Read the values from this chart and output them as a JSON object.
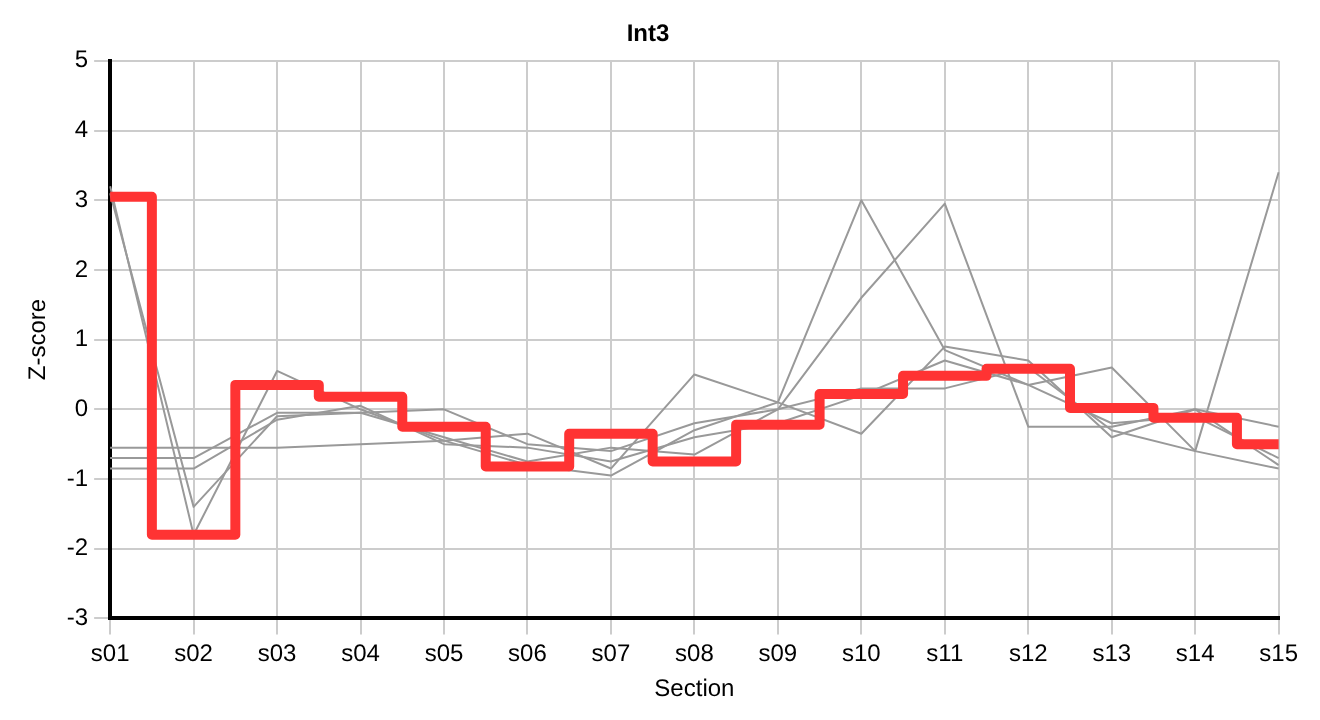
{
  "chart_data": {
    "type": "line",
    "title": "Int3",
    "xlabel": "Section",
    "ylabel": "Z-score",
    "categories": [
      "s01",
      "s02",
      "s03",
      "s04",
      "s05",
      "s06",
      "s07",
      "s08",
      "s09",
      "s10",
      "s11",
      "s12",
      "s13",
      "s14",
      "s15"
    ],
    "ylim": [
      -3,
      5
    ],
    "yticks": [
      -3,
      -2,
      -1,
      0,
      1,
      2,
      3,
      4,
      5
    ],
    "grid": true,
    "legend": false,
    "marker": "none",
    "series": [
      {
        "color": "#999999",
        "values": [
          3.2,
          -1.8,
          0.55,
          0.0,
          -0.45,
          -0.8,
          -0.95,
          -0.3,
          0.1,
          3.0,
          0.85,
          0.35,
          0.6,
          -0.6,
          3.4
        ]
      },
      {
        "color": "#999999",
        "values": [
          3.1,
          -1.4,
          -0.1,
          -0.05,
          -0.4,
          -0.75,
          -0.55,
          -0.65,
          0.0,
          1.6,
          2.95,
          -0.25,
          -0.25,
          0.0,
          -0.8
        ]
      },
      {
        "color": "#999999",
        "values": [
          -0.55,
          -0.55,
          -0.55,
          -0.5,
          -0.45,
          -0.35,
          -0.85,
          0.5,
          0.1,
          -0.35,
          0.9,
          0.7,
          -0.4,
          0.0,
          -0.25
        ]
      },
      {
        "color": "#999999",
        "values": [
          -0.7,
          -0.7,
          -0.05,
          -0.05,
          0.0,
          -0.5,
          -0.6,
          -0.2,
          0.0,
          0.3,
          0.3,
          0.6,
          -0.3,
          -0.6,
          -0.85
        ]
      },
      {
        "color": "#999999",
        "values": [
          -0.85,
          -0.85,
          -0.15,
          0.05,
          -0.5,
          -0.55,
          -0.75,
          -0.4,
          -0.2,
          0.2,
          0.7,
          0.35,
          -0.2,
          -0.1,
          -0.7
        ]
      },
      {
        "type": "step",
        "color": "#ff3333",
        "values": [
          3.05,
          -1.8,
          0.35,
          0.18,
          -0.25,
          -0.82,
          -0.35,
          -0.75,
          -0.22,
          0.22,
          0.48,
          0.58,
          0.02,
          -0.12,
          -0.5
        ]
      }
    ]
  }
}
